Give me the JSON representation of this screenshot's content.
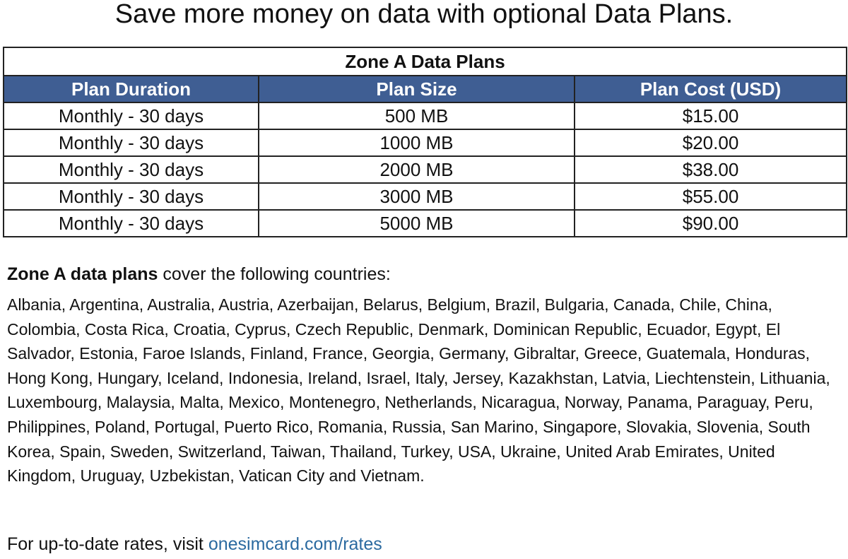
{
  "title": "Save more money on data with optional Data Plans.",
  "table": {
    "caption": "Zone A Data Plans",
    "headers": [
      "Plan Duration",
      "Plan Size",
      "Plan Cost (USD)"
    ],
    "rows": [
      [
        "Monthly - 30 days",
        "500 MB",
        "$15.00"
      ],
      [
        "Monthly - 30 days",
        "1000 MB",
        "$20.00"
      ],
      [
        "Monthly - 30 days",
        "2000 MB",
        "$38.00"
      ],
      [
        "Monthly - 30 days",
        "3000 MB",
        "$55.00"
      ],
      [
        "Monthly - 30 days",
        "5000 MB",
        "$90.00"
      ]
    ]
  },
  "coverage": {
    "intro_bold": "Zone A data plans",
    "intro_rest": "cover the following countries:",
    "countries": "Albania, Argentina, Australia, Austria, Azerbaijan, Belarus, Belgium, Brazil, Bulgaria, Canada, Chile, China, Colombia, Costa Rica, Croatia, Cyprus, Czech Republic, Denmark, Dominican Republic, Ecuador, Egypt, El Salvador, Estonia, Faroe Islands, Finland, France, Georgia, Germany, Gibraltar, Greece, Guatemala, Honduras, Hong Kong, Hungary, Iceland, Indonesia, Ireland, Israel, Italy, Jersey, Kazakhstan, Latvia, Liechtenstein, Lithuania, Luxembourg, Malaysia, Malta, Mexico, Montenegro, Netherlands, Nicaragua, Norway, Panama, Paraguay, Peru, Philippines, Poland, Portugal, Puerto Rico, Romania, Russia, San Marino, Singapore, Slovakia, Slovenia, South Korea, Spain, Sweden, Switzerland, Taiwan, Thailand, Turkey, USA, Ukraine, United Arab Emirates, United Kingdom, Uruguay, Uzbekistan, Vatican City and Vietnam."
  },
  "footer": {
    "text": "For up-to-date rates, visit",
    "link": "onesimcard.com/rates"
  }
}
